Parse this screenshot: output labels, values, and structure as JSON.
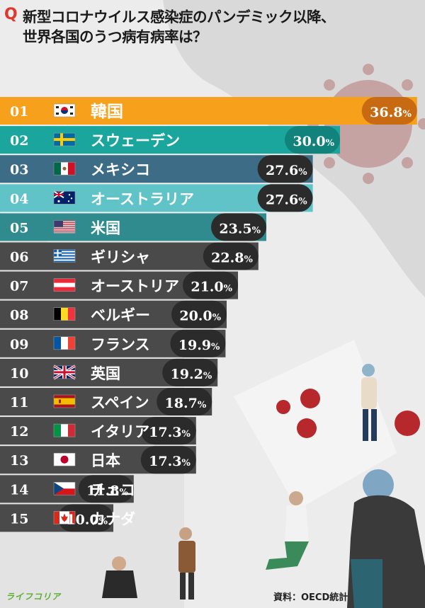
{
  "title": {
    "q_mark": "Q",
    "line1": "新型コロナウイルス感染症のパンデミック以降、",
    "line2": "世界各国のうつ病有病率は？"
  },
  "colors": {
    "first": "#f7a01c",
    "first_badge": "#c86a12",
    "second": "#1aa69c",
    "second_badge": "#11837c",
    "blue": "#3d6d86",
    "cyan": "#5fc3c8",
    "teal": "#2f8b8e",
    "dark": "#4a4a4a",
    "badge_dark": "#2b2b2b"
  },
  "chart_data": {
    "type": "bar",
    "unit": "%",
    "categories": [
      "韓国",
      "スウェーデン",
      "メキシコ",
      "オーストラリア",
      "米国",
      "ギリシャ",
      "オーストリア",
      "ベルギー",
      "フランス",
      "英国",
      "スペイン",
      "イタリア",
      "日本",
      "チェコ",
      "カナダ"
    ],
    "ranks": [
      "01",
      "02",
      "03",
      "04",
      "05",
      "06",
      "07",
      "08",
      "09",
      "10",
      "11",
      "12",
      "13",
      "14",
      "15"
    ],
    "values": [
      36.8,
      30.0,
      27.6,
      27.6,
      23.5,
      22.8,
      21.0,
      20.0,
      19.9,
      19.2,
      18.7,
      17.3,
      17.3,
      11.8,
      10.0
    ],
    "value_labels": [
      "36.8",
      "30.0",
      "27.6",
      "27.6",
      "23.5",
      "22.8",
      "21.0",
      "20.0",
      "19.9",
      "19.2",
      "18.7",
      "17.3",
      "17.3",
      "11.8",
      "10.0"
    ],
    "flags": [
      "korea-flag-icon",
      "sweden-flag-icon",
      "mexico-flag-icon",
      "australia-flag-icon",
      "usa-flag-icon",
      "greece-flag-icon",
      "austria-flag-icon",
      "belgium-flag-icon",
      "france-flag-icon",
      "uk-flag-icon",
      "spain-flag-icon",
      "italy-flag-icon",
      "japan-flag-icon",
      "czech-flag-icon",
      "canada-flag-icon"
    ]
  },
  "footer": {
    "source": "資料：OECD統計",
    "logo": "ライフコリア"
  }
}
